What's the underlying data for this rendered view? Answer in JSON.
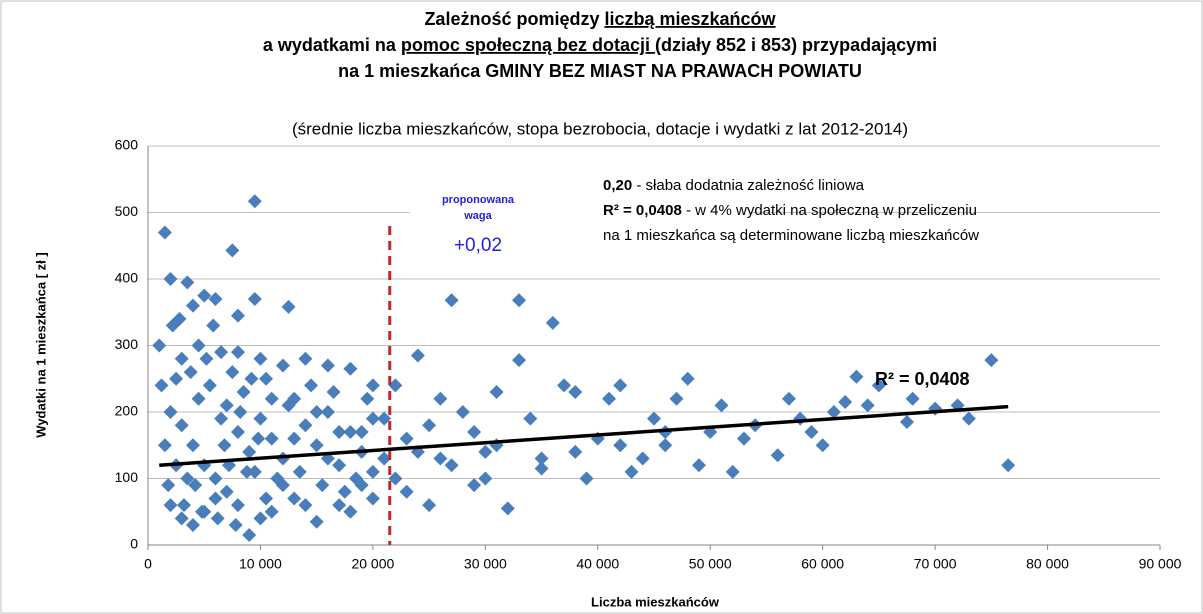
{
  "chart_data": {
    "type": "scatter",
    "title_lines": [
      [
        {
          "text": "Zależność pomiędzy "
        },
        {
          "text": "liczbą mieszkańców",
          "underline": true
        }
      ],
      [
        {
          "text": "a wydatkami na "
        },
        {
          "text": "pomoc społeczną bez dotacji ",
          "underline": true
        },
        {
          "text": "(działy 852 i 853) przypadającymi"
        }
      ],
      [
        {
          "text": "na 1 mieszkańca GMINY BEZ MIAST NA PRAWACH POWIATU"
        }
      ]
    ],
    "subtitle": "(średnie liczba mieszkańców, stopa bezrobocia, dotacje  i wydatki z lat 2012-2014)",
    "x_label": "Liczba mieszkańców",
    "y_label": "Wydatki  na 1 mieszkańca [ zł ]",
    "xlim": [
      0,
      90000
    ],
    "ylim": [
      0,
      600
    ],
    "xticks": [
      0,
      {
        "value": 10000,
        "label": "10 000"
      },
      {
        "value": 20000,
        "label": "20 000"
      },
      {
        "value": 30000,
        "label": "30 000"
      },
      {
        "value": 40000,
        "label": "40 000"
      },
      {
        "value": 50000,
        "label": "50 000"
      },
      {
        "value": 60000,
        "label": "60 000"
      },
      {
        "value": 70000,
        "label": "70 000"
      },
      {
        "value": 80000,
        "label": "80 000"
      },
      {
        "value": 90000,
        "label": "90 000"
      }
    ],
    "yticks": [
      0,
      100,
      200,
      300,
      400,
      500,
      600
    ],
    "grid": true,
    "color": "#4a7ebb",
    "x": [
      1500,
      2000,
      3500,
      9500,
      7500,
      5000,
      4000,
      6000,
      8000,
      9500,
      12500,
      1000,
      2500,
      3000,
      4500,
      6500,
      8000,
      10000,
      12000,
      14000,
      16000,
      18000,
      20000,
      2000,
      3000,
      4000,
      5000,
      6000,
      7000,
      8000,
      9000,
      10000,
      11000,
      13000,
      15000,
      17000,
      19000,
      20000,
      2000,
      3000,
      4000,
      5000,
      6000,
      7000,
      8000,
      9000,
      10000,
      11000,
      12000,
      13000,
      14000,
      15000,
      16000,
      17000,
      18000,
      19000,
      20000,
      1500,
      2500,
      3500,
      4500,
      5500,
      6500,
      7500,
      8500,
      9500,
      10500,
      11500,
      12500,
      13500,
      14500,
      15500,
      16500,
      17500,
      18500,
      19500,
      21000,
      22000,
      23000,
      24000,
      25000,
      26000,
      27000,
      28000,
      29000,
      30000,
      31000,
      32000,
      33000,
      33000,
      34000,
      35000,
      36000,
      37000,
      38000,
      39000,
      40000,
      41000,
      42000,
      43000,
      44000,
      45000,
      46000,
      47000,
      48000,
      49000,
      50000,
      51000,
      52000,
      54000,
      56000,
      57000,
      58000,
      59000,
      60000,
      61000,
      62000,
      63000,
      64000,
      65000,
      67500,
      68000,
      70000,
      72000,
      73000,
      75000,
      76500,
      22000,
      23000,
      25000,
      27000,
      29000,
      31000,
      35000,
      38000,
      42000,
      46000,
      53000,
      24000,
      26000,
      30000,
      1200,
      1800,
      2200,
      2800,
      3200,
      3800,
      4200,
      4800,
      5200,
      5800,
      6200,
      6800,
      7200,
      7800,
      8200,
      8800,
      9200,
      9800,
      10500,
      11000,
      12000,
      13000,
      14000,
      15000,
      16000,
      17000,
      18000,
      19000,
      20000,
      21000
    ],
    "values": [
      470,
      400,
      395,
      517,
      443,
      375,
      360,
      370,
      345,
      370,
      358,
      300,
      250,
      280,
      300,
      290,
      290,
      280,
      270,
      280,
      270,
      265,
      240,
      200,
      180,
      150,
      120,
      100,
      80,
      60,
      15,
      40,
      50,
      70,
      35,
      60,
      90,
      110,
      60,
      40,
      30,
      50,
      70,
      210,
      170,
      140,
      190,
      160,
      130,
      220,
      180,
      150,
      200,
      120,
      170,
      140,
      190,
      150,
      120,
      100,
      220,
      240,
      190,
      260,
      230,
      110,
      250,
      100,
      210,
      110,
      240,
      90,
      230,
      80,
      100,
      220,
      130,
      240,
      160,
      285,
      180,
      220,
      368,
      200,
      90,
      100,
      150,
      55,
      368,
      278,
      190,
      130,
      334,
      240,
      230,
      100,
      160,
      220,
      240,
      110,
      130,
      190,
      150,
      220,
      250,
      120,
      170,
      210,
      110,
      180,
      135,
      220,
      190,
      170,
      150,
      200,
      215,
      253,
      210,
      240,
      185,
      220,
      205,
      210,
      190,
      278,
      120,
      100,
      80,
      60,
      120,
      170,
      230,
      115,
      140,
      150,
      170,
      160,
      140,
      130,
      140,
      240,
      90,
      330,
      340,
      60,
      260,
      90,
      50,
      280,
      330,
      40,
      150,
      120,
      30,
      200,
      110,
      250,
      160,
      70,
      220,
      90,
      160,
      60,
      200,
      130,
      170,
      50,
      170,
      70,
      190
    ],
    "trendline": {
      "x": [
        1000,
        76500
      ],
      "values": [
        120,
        208
      ],
      "color": "#000000",
      "label": "R² = 0,0408"
    },
    "reference_line": {
      "x": 21500,
      "color": "#c0272d",
      "label_lines": [
        "proponowana",
        "waga"
      ],
      "value_label": "+0,02"
    },
    "annotations": [
      [
        {
          "text": "0,20",
          "bold": true
        },
        {
          "text": " - słaba dodatnia zależność liniowa"
        }
      ],
      [
        {
          "text": "R² = 0,0408",
          "bold": true
        },
        {
          "text": " - w 4% wydatki na społeczną w przeliczeniu"
        }
      ],
      [
        {
          "text": "na 1 mieszkańca są determinowane liczbą mieszkańców"
        }
      ]
    ]
  }
}
